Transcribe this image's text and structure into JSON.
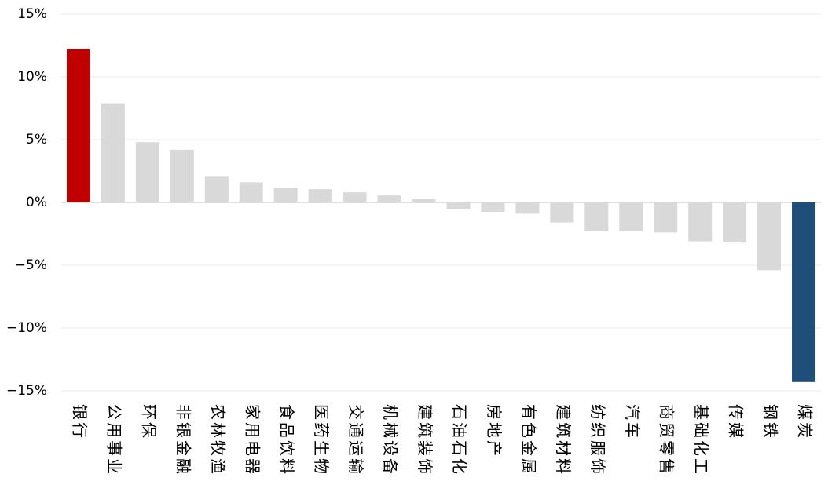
{
  "chart_data": {
    "type": "bar",
    "categories": [
      "银行",
      "公用事业",
      "环保",
      "非银金融",
      "农林牧渔",
      "家用电器",
      "食品饮料",
      "医药生物",
      "交通运输",
      "机械设备",
      "建筑装饰",
      "石油石化",
      "房地产",
      "有色金属",
      "建筑材料",
      "纺织服饰",
      "汽车",
      "商贸零售",
      "基础化工",
      "传媒",
      "钢铁",
      "煤炭"
    ],
    "values": [
      12.2,
      7.9,
      4.8,
      4.2,
      2.1,
      1.6,
      1.15,
      1.05,
      0.8,
      0.55,
      0.25,
      -0.5,
      -0.75,
      -0.9,
      -1.6,
      -2.3,
      -2.3,
      -2.4,
      -3.1,
      -3.2,
      -5.4,
      -14.3
    ],
    "colors": [
      "#c00000",
      "#d9d9d9",
      "#d9d9d9",
      "#d9d9d9",
      "#d9d9d9",
      "#d9d9d9",
      "#d9d9d9",
      "#d9d9d9",
      "#d9d9d9",
      "#d9d9d9",
      "#d9d9d9",
      "#d9d9d9",
      "#d9d9d9",
      "#d9d9d9",
      "#d9d9d9",
      "#d9d9d9",
      "#d9d9d9",
      "#d9d9d9",
      "#d9d9d9",
      "#d9d9d9",
      "#d9d9d9",
      "#1f4e79"
    ],
    "ylim": [
      -15,
      15
    ],
    "yticks": [
      {
        "value": 15,
        "label": "15%"
      },
      {
        "value": 10,
        "label": "10%"
      },
      {
        "value": 5,
        "label": "5%"
      },
      {
        "value": 0,
        "label": "0%"
      },
      {
        "value": -5,
        "label": "−5%"
      },
      {
        "value": -10,
        "label": "−10%"
      },
      {
        "value": -15,
        "label": "−15%"
      }
    ],
    "grid": true
  }
}
